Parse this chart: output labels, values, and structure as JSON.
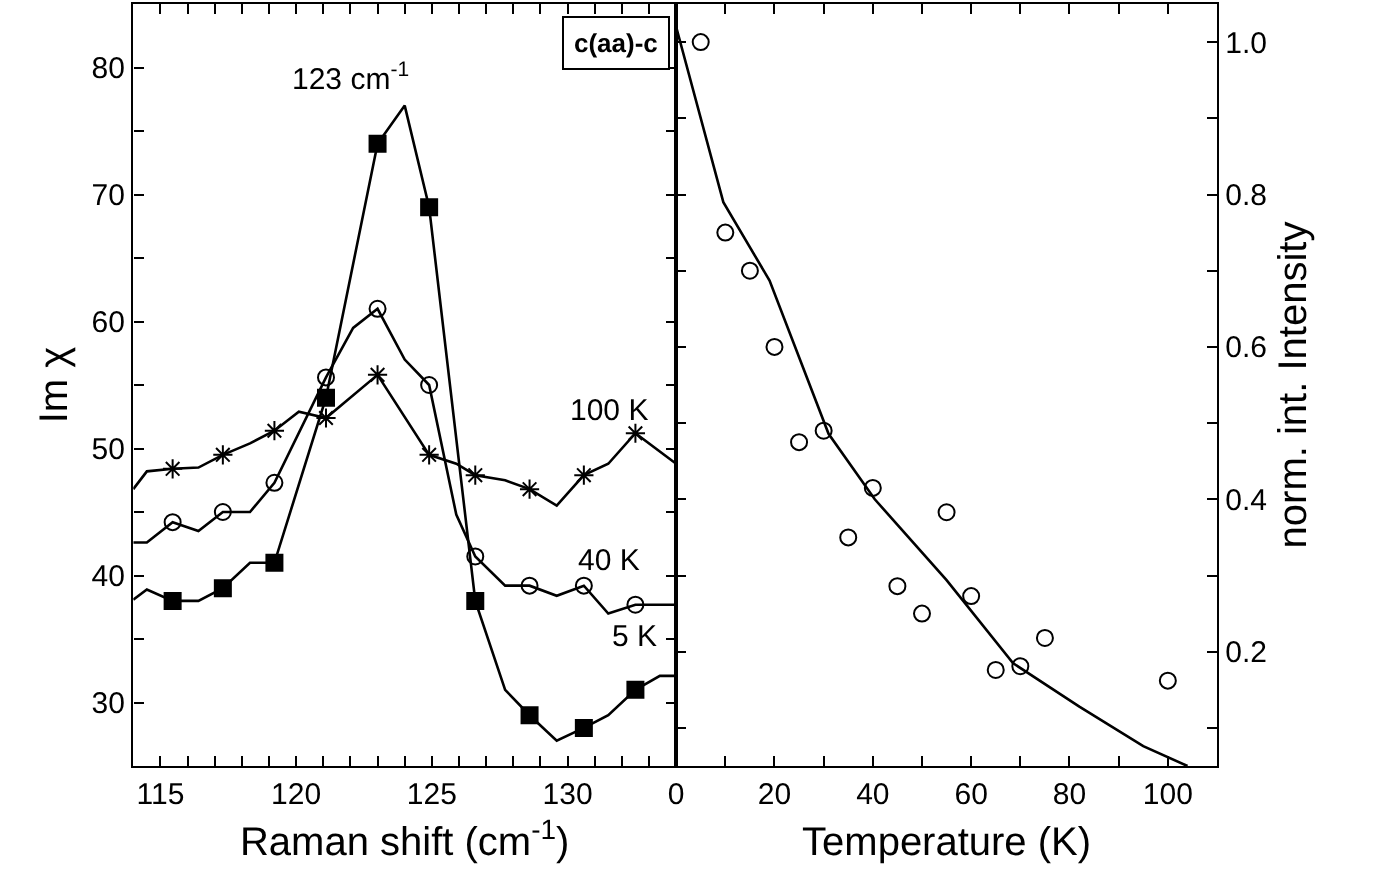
{
  "chart_data": [
    {
      "type": "line",
      "xlabel": "Raman shift (cm$^{-1}$)",
      "ylabel": "Im χ",
      "xlim": [
        114,
        134
      ],
      "ylim": [
        25,
        85
      ],
      "xticks": [
        115,
        120,
        125,
        130,
        {
          "value": 116,
          "label": null
        },
        {
          "value": 117,
          "label": null
        },
        {
          "value": 118,
          "label": null
        },
        {
          "value": 119,
          "label": null
        },
        {
          "value": 121,
          "label": null
        },
        {
          "value": 122,
          "label": null
        },
        {
          "value": 123,
          "label": null
        },
        {
          "value": 124,
          "label": null
        },
        {
          "value": 126,
          "label": null
        },
        {
          "value": 127,
          "label": null
        },
        {
          "value": 128,
          "label": null
        },
        {
          "value": 129,
          "label": null
        },
        {
          "value": 131,
          "label": null
        },
        {
          "value": 132,
          "label": null
        },
        {
          "value": 133,
          "label": null
        }
      ],
      "yticks": [
        30,
        40,
        50,
        60,
        70,
        80,
        {
          "value": 35,
          "label": null
        },
        {
          "value": 45,
          "label": null
        },
        {
          "value": 55,
          "label": null
        },
        {
          "value": 65,
          "label": null
        },
        {
          "value": 75,
          "label": null
        }
      ],
      "legend": "right",
      "annotations": [
        "123 cm$^{-1}$",
        "c(aa)-c"
      ],
      "series": [
        {
          "name": "5 K",
          "marker": "none",
          "color": "#000000",
          "x": [
            114,
            114.5,
            115.45,
            116.4,
            117.3,
            118.3,
            119.2,
            121.1,
            123,
            124,
            124.9,
            126.6,
            127.7,
            128.6,
            129.6,
            130.6,
            131.5,
            132.5,
            133.4,
            134
          ],
          "values": [
            38.1,
            38.9,
            38,
            38,
            39,
            41,
            41,
            54,
            74,
            77,
            69,
            38,
            31,
            29,
            27,
            28,
            29,
            31,
            32.1,
            32.1
          ]
        },
        {
          "type": "scatter",
          "marker": "square",
          "color": "#000000",
          "x": [
            115.45,
            117.3,
            119.2,
            121.1,
            123,
            124.9,
            126.6,
            128.6,
            130.6,
            132.5
          ],
          "values": [
            38,
            39,
            41,
            54,
            74,
            69,
            38,
            29,
            28,
            31
          ]
        },
        {
          "name": "40 K",
          "marker": "none",
          "color": "#000000",
          "x": [
            114,
            114.5,
            115.45,
            116.4,
            117.3,
            118.3,
            119.2,
            121.1,
            122.1,
            123,
            124,
            124.9,
            125.9,
            126.6,
            127.7,
            128.6,
            129.6,
            130.6,
            131.5,
            132.5,
            134
          ],
          "values": [
            42.6,
            42.6,
            44.2,
            43.5,
            45,
            45,
            47.3,
            55.6,
            59.5,
            61,
            57,
            55,
            44.8,
            41.5,
            39.2,
            39.2,
            38.4,
            39.2,
            37,
            37.7,
            37.7
          ]
        },
        {
          "type": "scatter",
          "marker": "circle",
          "color": "#000000",
          "x": [
            115.45,
            117.3,
            119.2,
            121.1,
            123,
            124.9,
            126.6,
            128.6,
            130.6,
            132.5
          ],
          "values": [
            44.2,
            45,
            47.3,
            55.6,
            61,
            55,
            41.5,
            39.2,
            39.2,
            37.7
          ]
        },
        {
          "name": "100 K",
          "marker": "none",
          "color": "#000000",
          "x": [
            114,
            114.5,
            115.45,
            116.4,
            117.3,
            118.3,
            119.2,
            120.1,
            121.1,
            123,
            124.9,
            125.9,
            126.6,
            127.7,
            128.6,
            129.6,
            130.6,
            131.5,
            132.5,
            134
          ],
          "values": [
            46.8,
            48.2,
            48.4,
            48.5,
            49.5,
            50.4,
            51.4,
            52.9,
            52.4,
            55.8,
            49.5,
            48.8,
            47.9,
            47.5,
            46.8,
            45.5,
            47.9,
            48.8,
            51.2,
            48.8
          ]
        },
        {
          "type": "scatter",
          "marker": "cross",
          "color": "#000000",
          "x": [
            115.45,
            117.3,
            119.2,
            121.1,
            123,
            124.9,
            126.6,
            128.6,
            130.6,
            132.5
          ],
          "values": [
            48.4,
            49.5,
            51.4,
            52.4,
            55.8,
            49.5,
            47.9,
            46.8,
            47.9,
            51.2
          ]
        }
      ]
    },
    {
      "type": "scatter",
      "xlabel": "Temperature (K)",
      "ylabel": "norm. int. Intensity",
      "xlim": [
        0,
        110
      ],
      "ylim": [
        0.05,
        1.05
      ],
      "xticks": [
        0,
        20,
        40,
        60,
        80,
        100,
        {
          "value": 10,
          "label": null
        },
        {
          "value": 30,
          "label": null
        },
        {
          "value": 50,
          "label": null
        },
        {
          "value": 70,
          "label": null
        },
        {
          "value": 90,
          "label": null
        }
      ],
      "yticks": [
        0.2,
        0.4,
        0.6,
        0.8,
        {
          "value": 1,
          "label": "1.0"
        },
        {
          "value": 0.1,
          "label": null
        },
        {
          "value": 0.3,
          "label": null
        },
        {
          "value": 0.5,
          "label": null
        },
        {
          "value": 0.7,
          "label": null
        },
        {
          "value": 0.9,
          "label": null
        }
      ],
      "legend": false,
      "series": [
        {
          "marker": "circle",
          "color": "#000000",
          "x": [
            5,
            10,
            15,
            20,
            25,
            30,
            35,
            40,
            45,
            50,
            55,
            60,
            65,
            70,
            75,
            100
          ],
          "values": [
            1.0,
            0.75,
            0.7,
            0.6,
            0.475,
            0.49,
            0.35,
            0.415,
            0.286,
            0.25,
            0.383,
            0.273,
            0.176,
            0.181,
            0.218,
            0.162
          ]
        },
        {
          "type": "line",
          "marker": "none",
          "color": "#000000",
          "x": [
            0,
            9.6,
            19,
            31,
            40.4,
            55,
            68.5,
            82,
            95,
            104
          ],
          "values": [
            1.02,
            0.79,
            0.687,
            0.486,
            0.4,
            0.294,
            0.185,
            0.128,
            0.076,
            0.05
          ]
        }
      ]
    }
  ]
}
